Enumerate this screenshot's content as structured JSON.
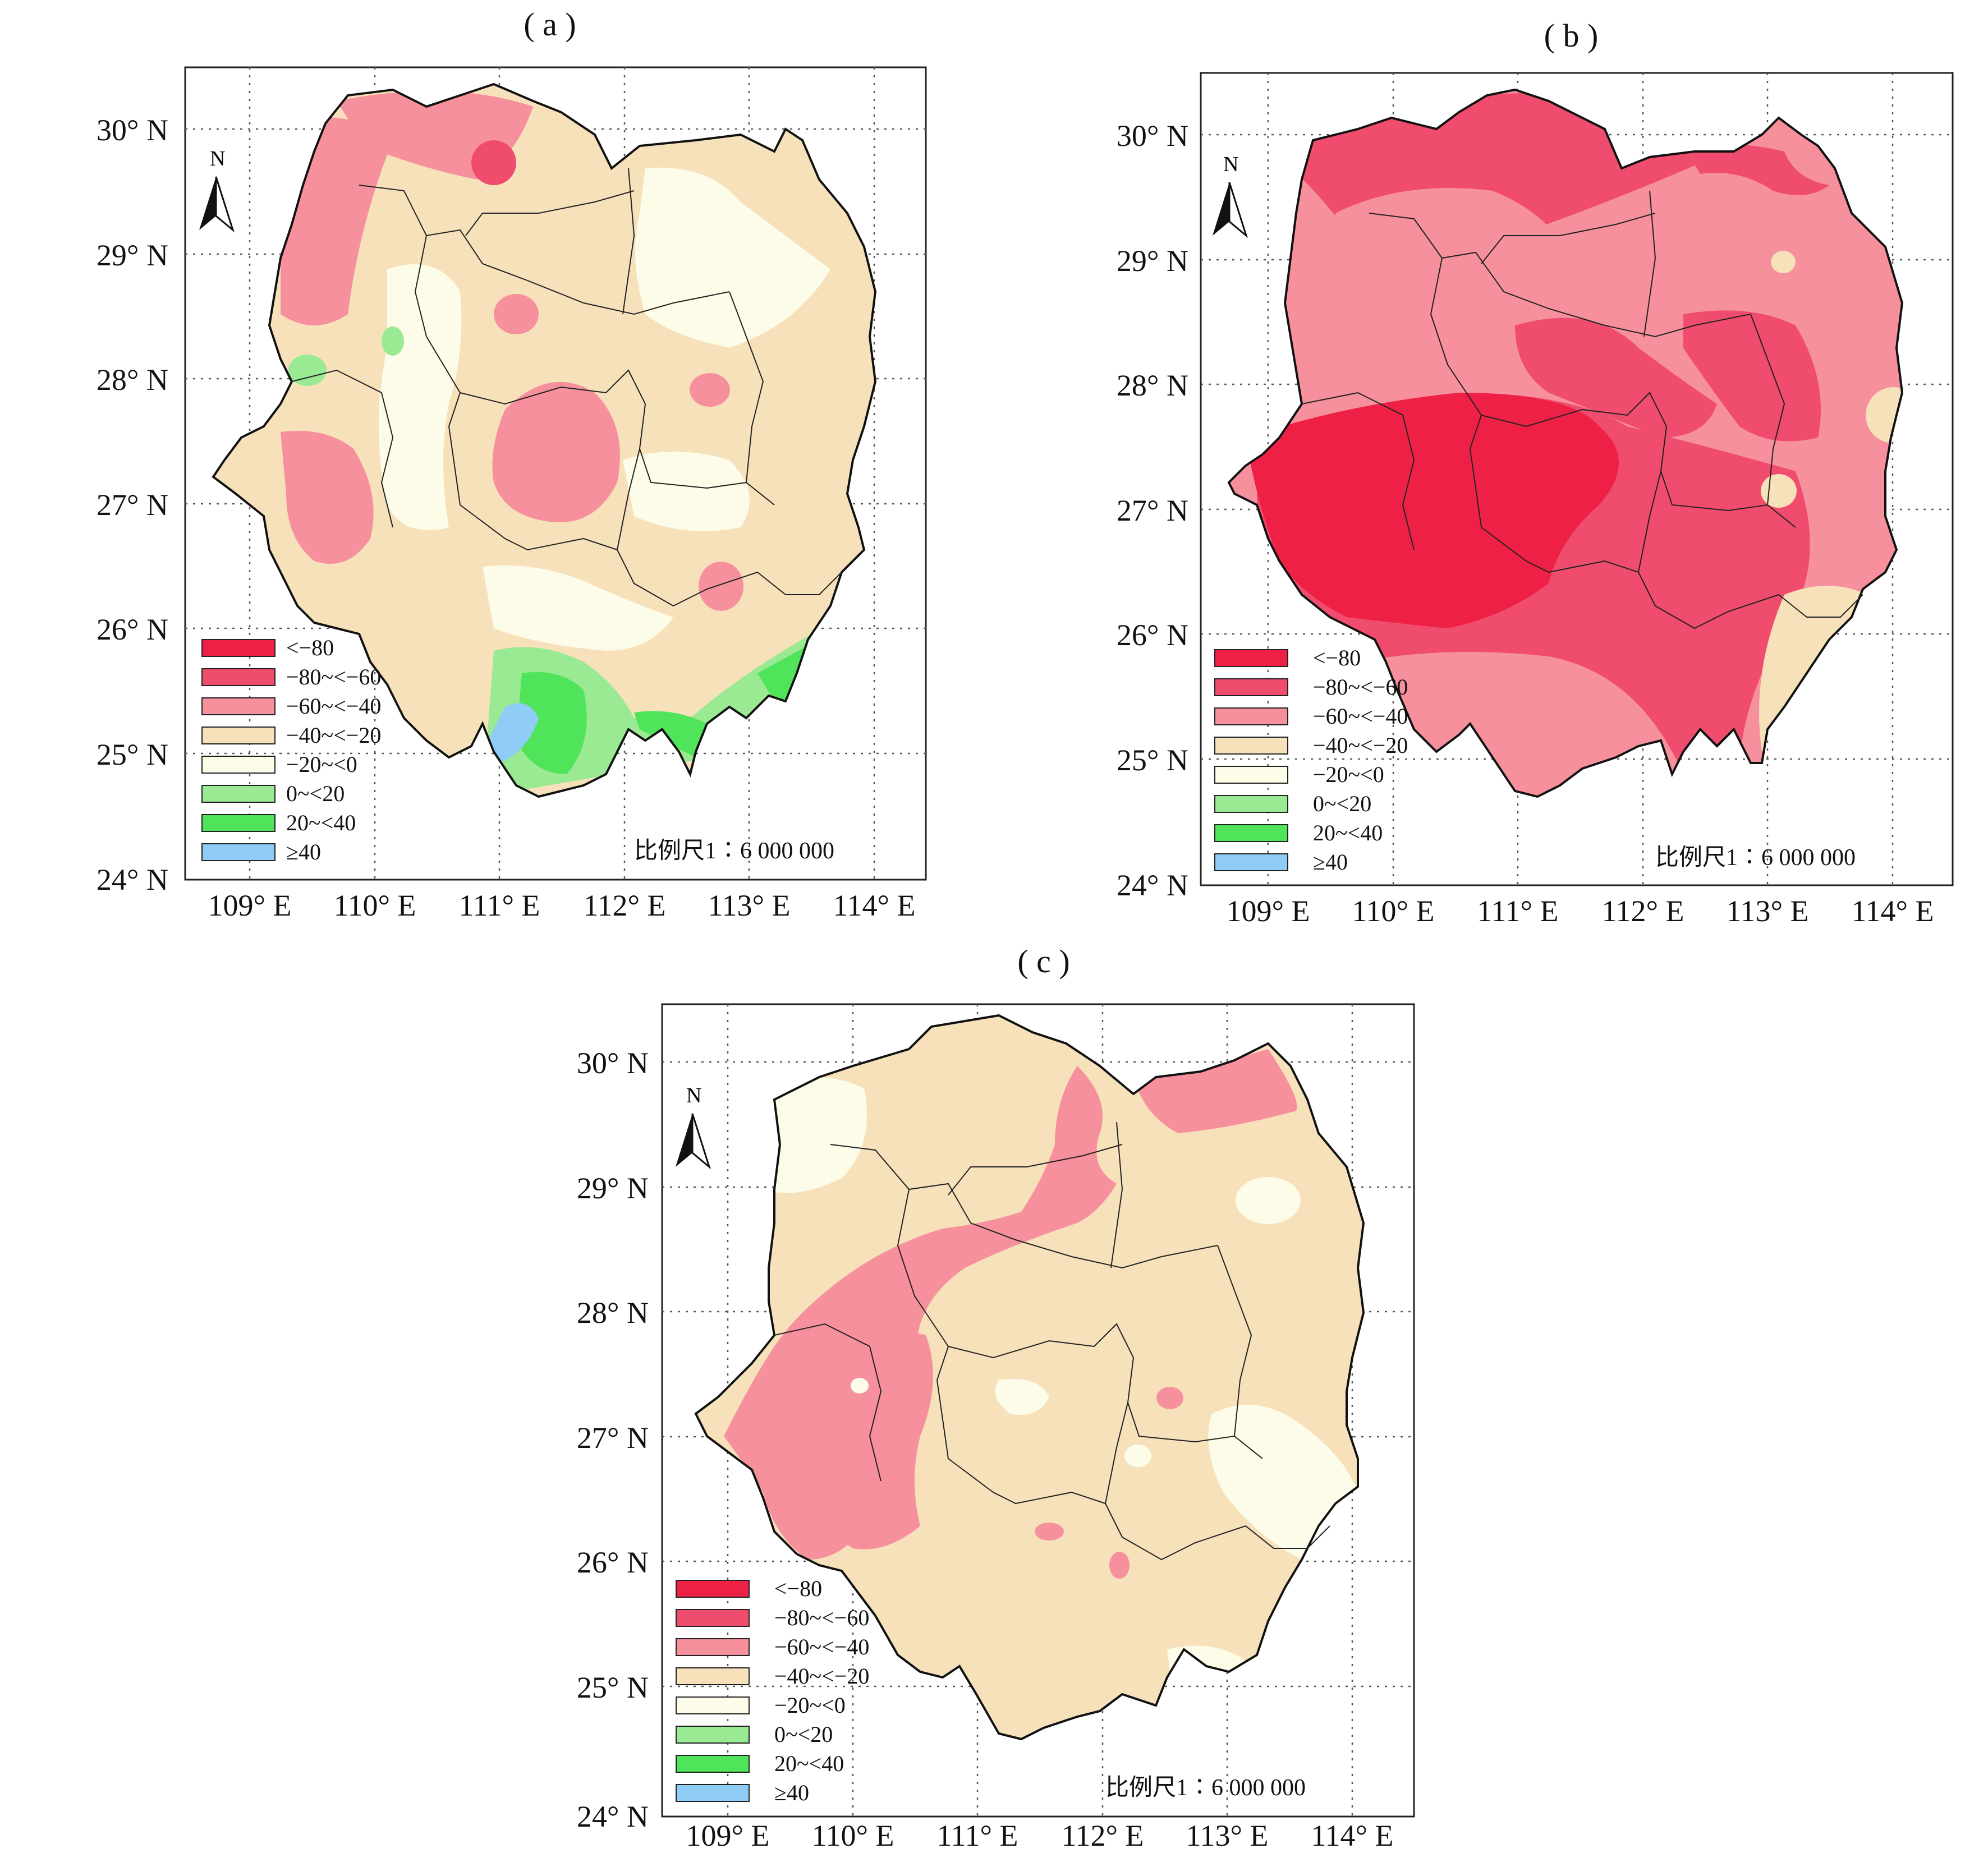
{
  "panels": [
    {
      "id": "a",
      "title": "( a )"
    },
    {
      "id": "b",
      "title": "( b )"
    },
    {
      "id": "c",
      "title": "( c )"
    }
  ],
  "axes": {
    "lat_labels": [
      "24° N",
      "25° N",
      "26° N",
      "27° N",
      "28° N",
      "29° N",
      "30° N"
    ],
    "lon_labels": [
      "109° E",
      "110° E",
      "111° E",
      "112° E",
      "113° E",
      "114° E"
    ],
    "lat_range": [
      24,
      30.5
    ],
    "lon_range": [
      108.5,
      114.4
    ]
  },
  "north_label": "N",
  "scale_text": "比例尺1∶6 000 000",
  "legend": [
    {
      "label": "<−80",
      "color": "#ef2046"
    },
    {
      "label": "−80~<−60",
      "color": "#ef4c6e"
    },
    {
      "label": "−60~<−40",
      "color": "#f7909d"
    },
    {
      "label": "−40~<−20",
      "color": "#f6e1bb"
    },
    {
      "label": "−20~<0",
      "color": "#fdfce8"
    },
    {
      "label": "0~<20",
      "color": "#9ae993"
    },
    {
      "label": "20~<40",
      "color": "#4fe45a"
    },
    {
      "label": "≥40",
      "color": "#8fcdf6"
    }
  ]
}
